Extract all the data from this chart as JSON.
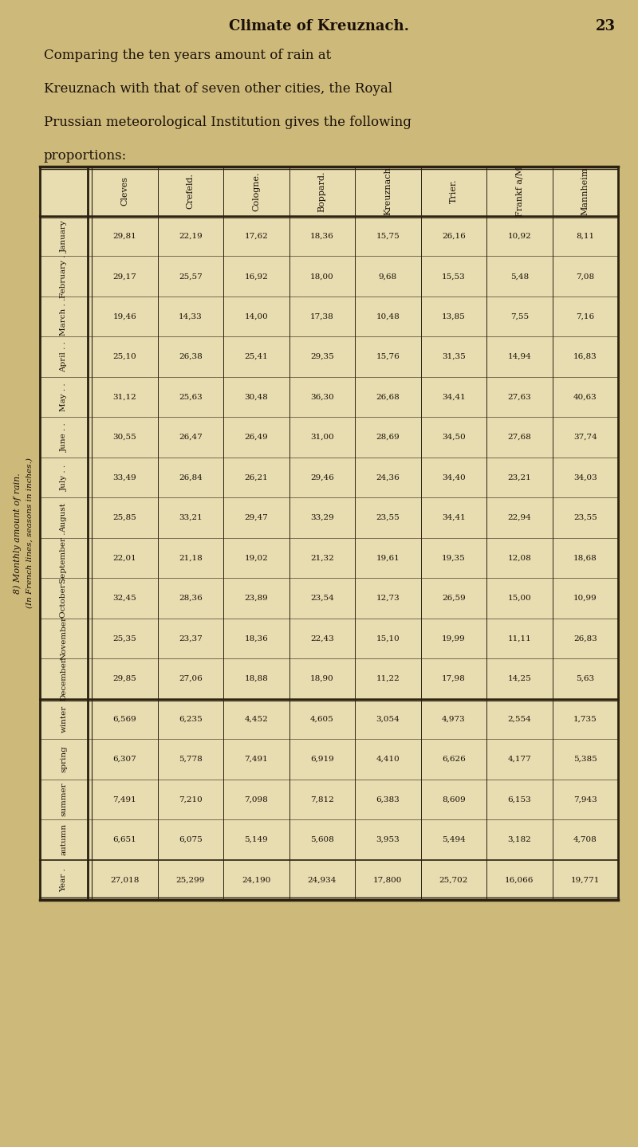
{
  "title": "Climate of Kreuznach.",
  "page_number": "23",
  "intro_lines": [
    "Comparing the ten years amount of rain at",
    "Kreuznach with that of seven other cities, the Royal",
    "Prussian meteorological Institution gives the following",
    "proportions:"
  ],
  "side_label1": "8) Monthly amount of rain.",
  "side_label2": "(In French lines, seasons in inches.)",
  "col_headers": [
    "Cleves",
    "Crefeld.",
    "Cologne.",
    "Boppard.",
    "Kreuznach",
    "Trier.",
    "Frankf a/M",
    "Mannheim"
  ],
  "row_labels": [
    "January",
    "February .",
    "March . .",
    "April . .",
    "May . .",
    "June . .",
    "July . .",
    "August",
    "September .",
    "October .",
    "November",
    "December.",
    "winter",
    "spring",
    "summer",
    "autumn",
    "Year ."
  ],
  "data": [
    [
      29.81,
      22.19,
      17.62,
      18.36,
      15.75,
      26.16,
      10.92,
      8.11
    ],
    [
      29.17,
      25.57,
      16.92,
      18.0,
      9.68,
      15.53,
      5.48,
      7.08
    ],
    [
      19.46,
      14.33,
      14.0,
      17.38,
      10.48,
      13.85,
      7.55,
      7.16
    ],
    [
      25.1,
      26.38,
      25.41,
      29.35,
      15.76,
      31.35,
      14.94,
      16.83
    ],
    [
      31.12,
      25.63,
      30.48,
      36.3,
      26.68,
      34.41,
      27.63,
      40.63
    ],
    [
      30.55,
      26.47,
      26.49,
      31.0,
      28.69,
      34.5,
      27.68,
      37.74
    ],
    [
      33.49,
      26.84,
      26.21,
      29.46,
      24.36,
      34.4,
      23.21,
      34.03
    ],
    [
      25.85,
      33.21,
      29.47,
      33.29,
      23.55,
      34.41,
      22.94,
      23.55
    ],
    [
      22.01,
      21.18,
      19.02,
      21.32,
      19.61,
      19.35,
      12.08,
      18.68
    ],
    [
      32.45,
      28.36,
      23.89,
      23.54,
      12.73,
      26.59,
      15.0,
      10.99
    ],
    [
      25.35,
      23.37,
      18.36,
      22.43,
      15.1,
      19.99,
      11.11,
      26.83
    ],
    [
      29.85,
      27.06,
      18.88,
      18.9,
      11.22,
      17.98,
      14.25,
      5.63
    ],
    [
      6.569,
      6.235,
      4.452,
      4.605,
      3.054,
      4.973,
      2.554,
      1.735
    ],
    [
      6.307,
      5.778,
      7.491,
      6.919,
      4.41,
      6.626,
      4.177,
      5.385
    ],
    [
      7.491,
      7.21,
      7.098,
      7.812,
      6.383,
      8.609,
      6.153,
      7.943
    ],
    [
      6.651,
      6.075,
      5.149,
      5.608,
      3.953,
      5.494,
      3.182,
      4.708
    ],
    [
      27.018,
      25.299,
      24.19,
      24.934,
      17.8,
      25.702,
      16.066,
      19.771
    ]
  ],
  "bg_color": "#cdb97a",
  "table_bg": "#e8ddb0",
  "line_color": "#2a2010",
  "text_color": "#1a1008"
}
